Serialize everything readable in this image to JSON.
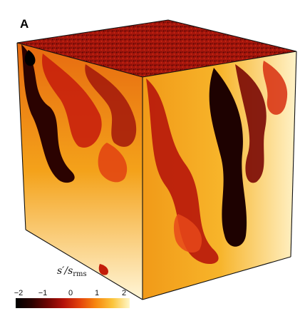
{
  "figure": {
    "panel_label": "A",
    "colorbar": {
      "label_base": "s′/s",
      "label_sub": "rms",
      "ticks": [
        "−2",
        "−1",
        "0",
        "1",
        "2"
      ],
      "colors": [
        "#000000",
        "#6e0502",
        "#e3420c",
        "#fbc53c",
        "#fff7c9"
      ]
    }
  }
}
